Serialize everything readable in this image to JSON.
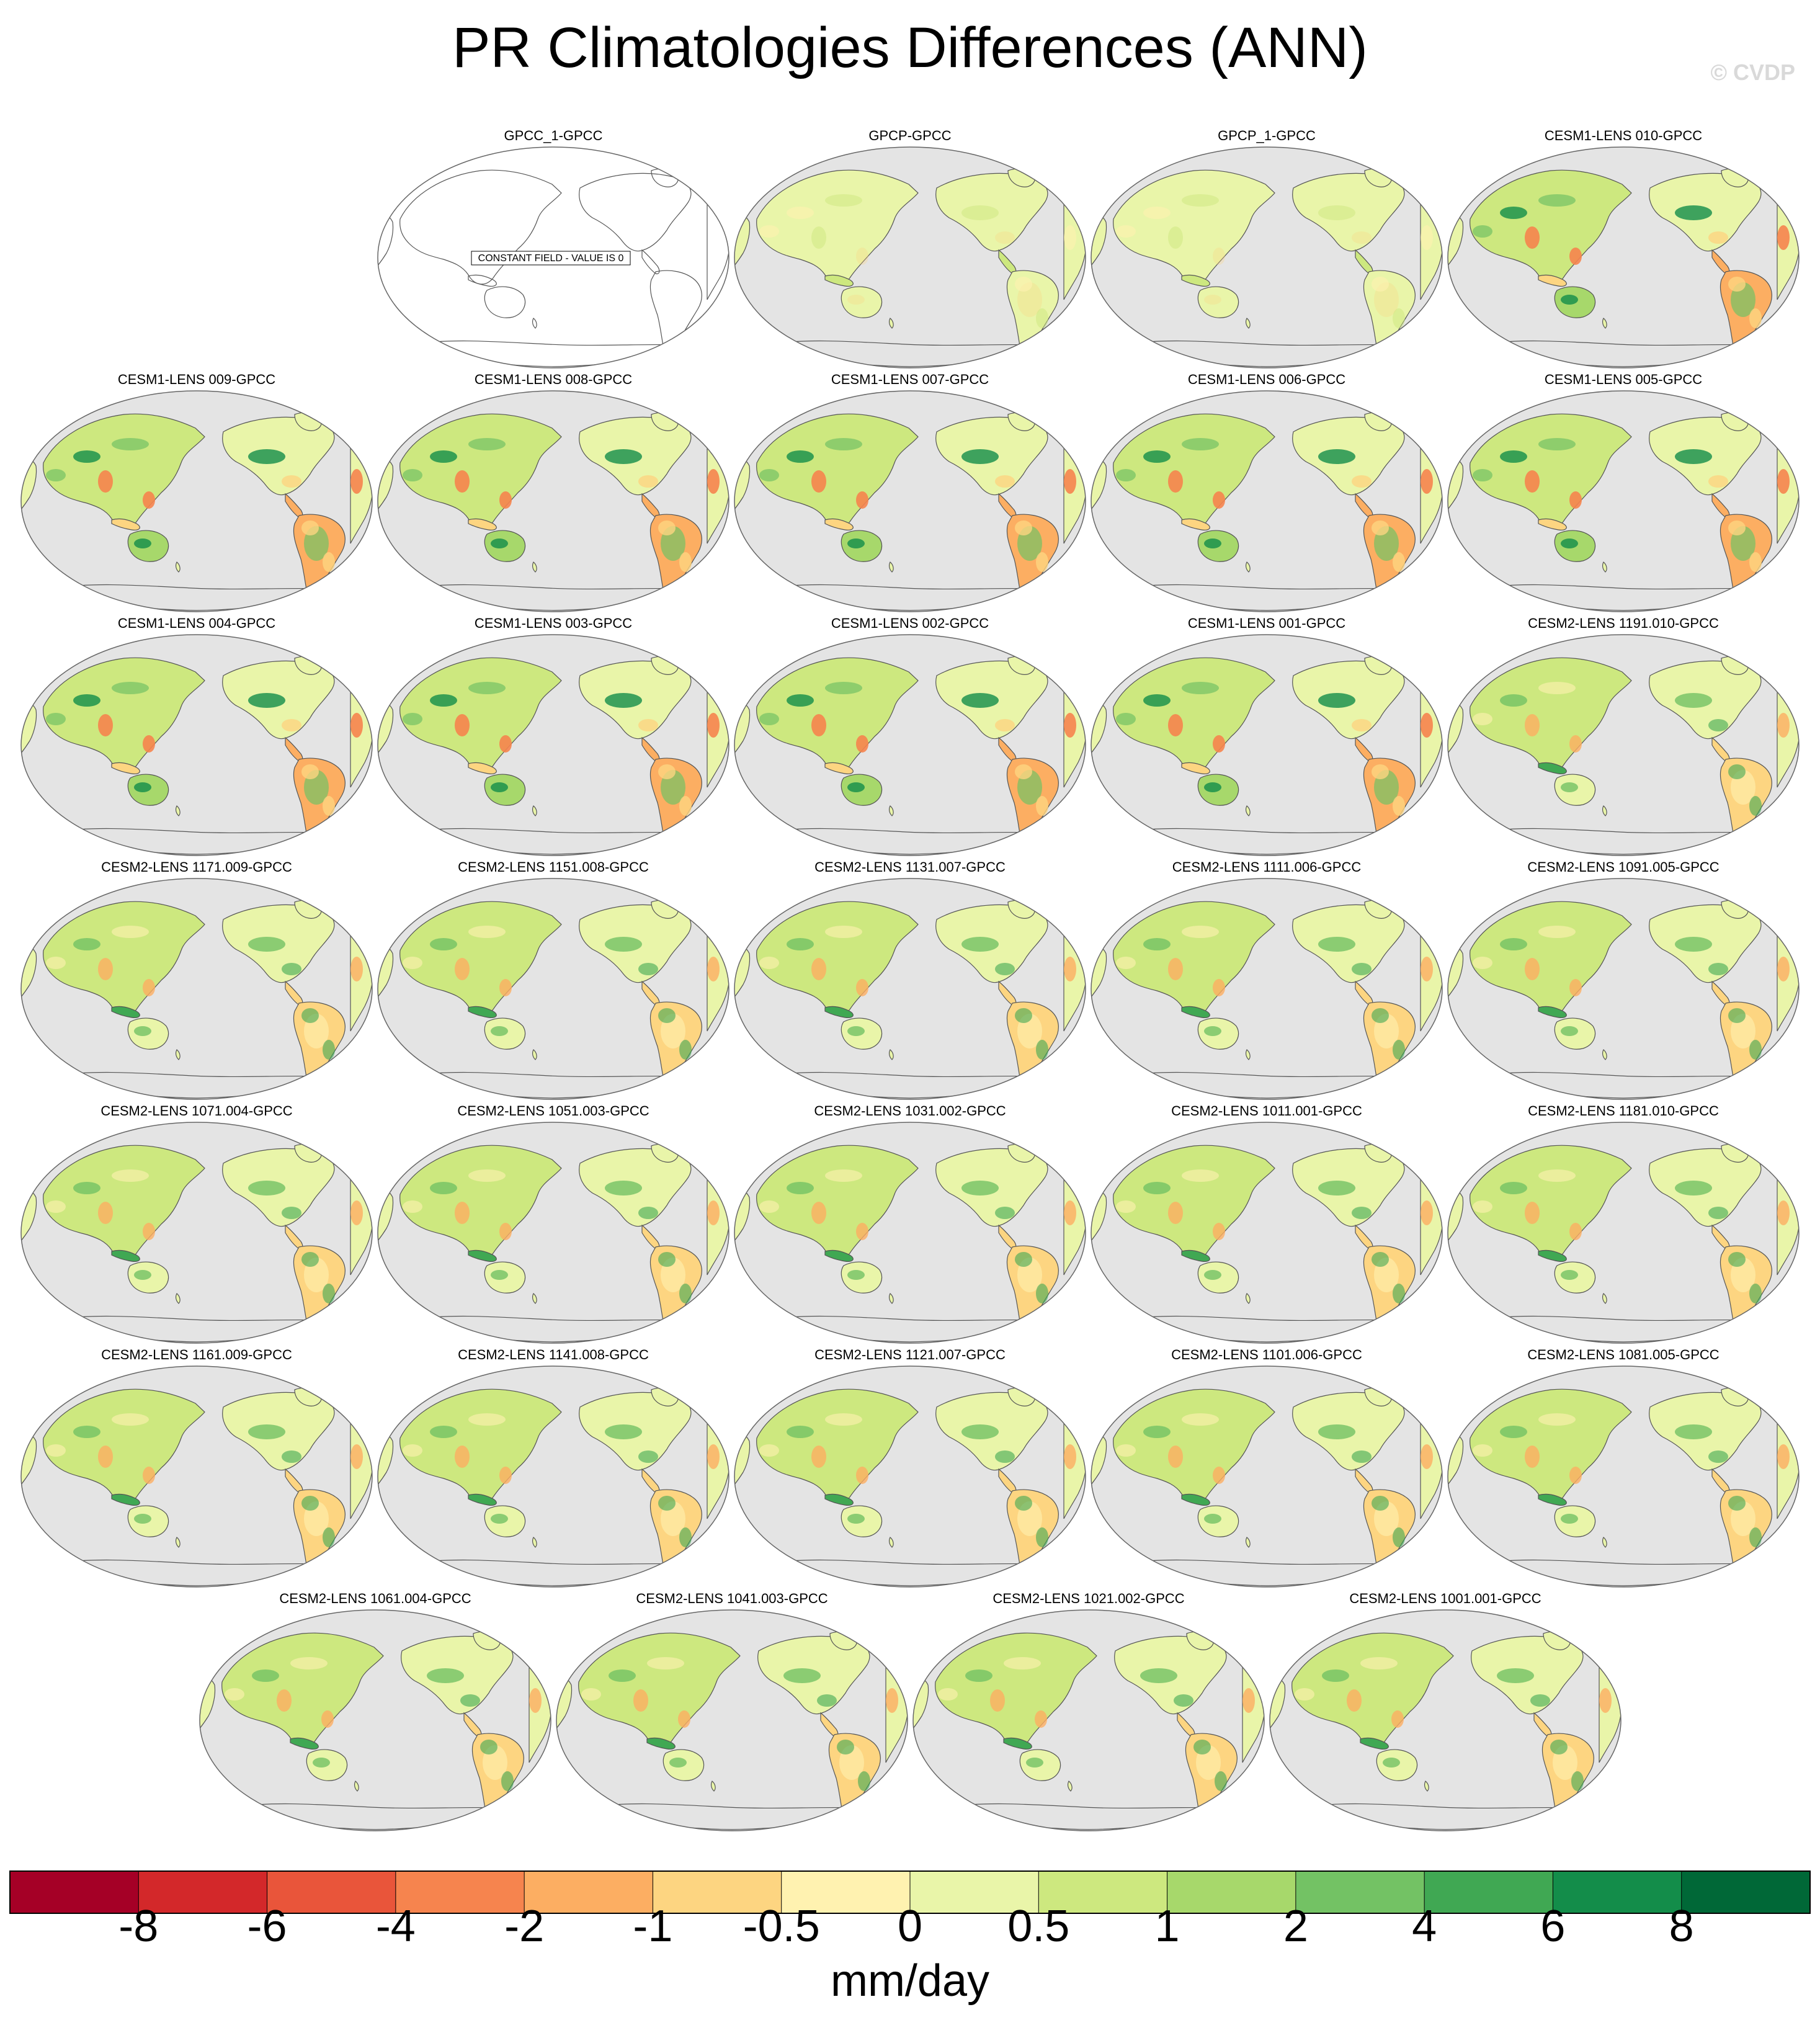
{
  "figure": {
    "title": "PR Climatologies Differences (ANN)",
    "copyright": "© CVDP"
  },
  "constant_field_label": "CONSTANT FIELD - VALUE IS 0",
  "panels": [
    {
      "title": "GPCC_1-GPCC",
      "constant": true
    },
    {
      "title": "GPCP-GPCC",
      "constant": false,
      "style": "obs"
    },
    {
      "title": "GPCP_1-GPCC",
      "constant": false,
      "style": "obs"
    },
    {
      "title": "CESM1-LENS 010-GPCC",
      "constant": false,
      "style": "cesm1"
    },
    {
      "title": "CESM1-LENS 009-GPCC",
      "constant": false,
      "style": "cesm1"
    },
    {
      "title": "CESM1-LENS 008-GPCC",
      "constant": false,
      "style": "cesm1"
    },
    {
      "title": "CESM1-LENS 007-GPCC",
      "constant": false,
      "style": "cesm1"
    },
    {
      "title": "CESM1-LENS 006-GPCC",
      "constant": false,
      "style": "cesm1"
    },
    {
      "title": "CESM1-LENS 005-GPCC",
      "constant": false,
      "style": "cesm1"
    },
    {
      "title": "CESM1-LENS 004-GPCC",
      "constant": false,
      "style": "cesm1"
    },
    {
      "title": "CESM1-LENS 003-GPCC",
      "constant": false,
      "style": "cesm1"
    },
    {
      "title": "CESM1-LENS 002-GPCC",
      "constant": false,
      "style": "cesm1"
    },
    {
      "title": "CESM1-LENS 001-GPCC",
      "constant": false,
      "style": "cesm1"
    },
    {
      "title": "CESM2-LENS 1191.010-GPCC",
      "constant": false,
      "style": "cesm2"
    },
    {
      "title": "CESM2-LENS 1171.009-GPCC",
      "constant": false,
      "style": "cesm2"
    },
    {
      "title": "CESM2-LENS 1151.008-GPCC",
      "constant": false,
      "style": "cesm2"
    },
    {
      "title": "CESM2-LENS 1131.007-GPCC",
      "constant": false,
      "style": "cesm2"
    },
    {
      "title": "CESM2-LENS 1111.006-GPCC",
      "constant": false,
      "style": "cesm2"
    },
    {
      "title": "CESM2-LENS 1091.005-GPCC",
      "constant": false,
      "style": "cesm2"
    },
    {
      "title": "CESM2-LENS 1071.004-GPCC",
      "constant": false,
      "style": "cesm2"
    },
    {
      "title": "CESM2-LENS 1051.003-GPCC",
      "constant": false,
      "style": "cesm2"
    },
    {
      "title": "CESM2-LENS 1031.002-GPCC",
      "constant": false,
      "style": "cesm2"
    },
    {
      "title": "CESM2-LENS 1011.001-GPCC",
      "constant": false,
      "style": "cesm2"
    },
    {
      "title": "CESM2-LENS 1181.010-GPCC",
      "constant": false,
      "style": "cesm2"
    },
    {
      "title": "CESM2-LENS 1161.009-GPCC",
      "constant": false,
      "style": "cesm2"
    },
    {
      "title": "CESM2-LENS 1141.008-GPCC",
      "constant": false,
      "style": "cesm2"
    },
    {
      "title": "CESM2-LENS 1121.007-GPCC",
      "constant": false,
      "style": "cesm2"
    },
    {
      "title": "CESM2-LENS 1101.006-GPCC",
      "constant": false,
      "style": "cesm2"
    },
    {
      "title": "CESM2-LENS 1081.005-GPCC",
      "constant": false,
      "style": "cesm2"
    },
    {
      "title": "CESM2-LENS 1061.004-GPCC",
      "constant": false,
      "style": "cesm2"
    },
    {
      "title": "CESM2-LENS 1041.003-GPCC",
      "constant": false,
      "style": "cesm2"
    },
    {
      "title": "CESM2-LENS 1021.002-GPCC",
      "constant": false,
      "style": "cesm2"
    },
    {
      "title": "CESM2-LENS 1001.001-GPCC",
      "constant": false,
      "style": "cesm2"
    }
  ],
  "colorbar": {
    "unit": "mm/day",
    "ticks": [
      "-8",
      "-6",
      "-4",
      "-2",
      "-1",
      "-0.5",
      "0",
      "0.5",
      "1",
      "2",
      "4",
      "6",
      "8"
    ],
    "colors": [
      "#a50026",
      "#d3282a",
      "#e9553a",
      "#f6844e",
      "#fcae62",
      "#fdd581",
      "#fff2b0",
      "#e9f5a9",
      "#cde87f",
      "#a7d86b",
      "#73c264",
      "#40a853",
      "#138d4a",
      "#006837"
    ]
  },
  "map_colors": {
    "ocean": "#e4e4e4",
    "coast": "#555555"
  }
}
